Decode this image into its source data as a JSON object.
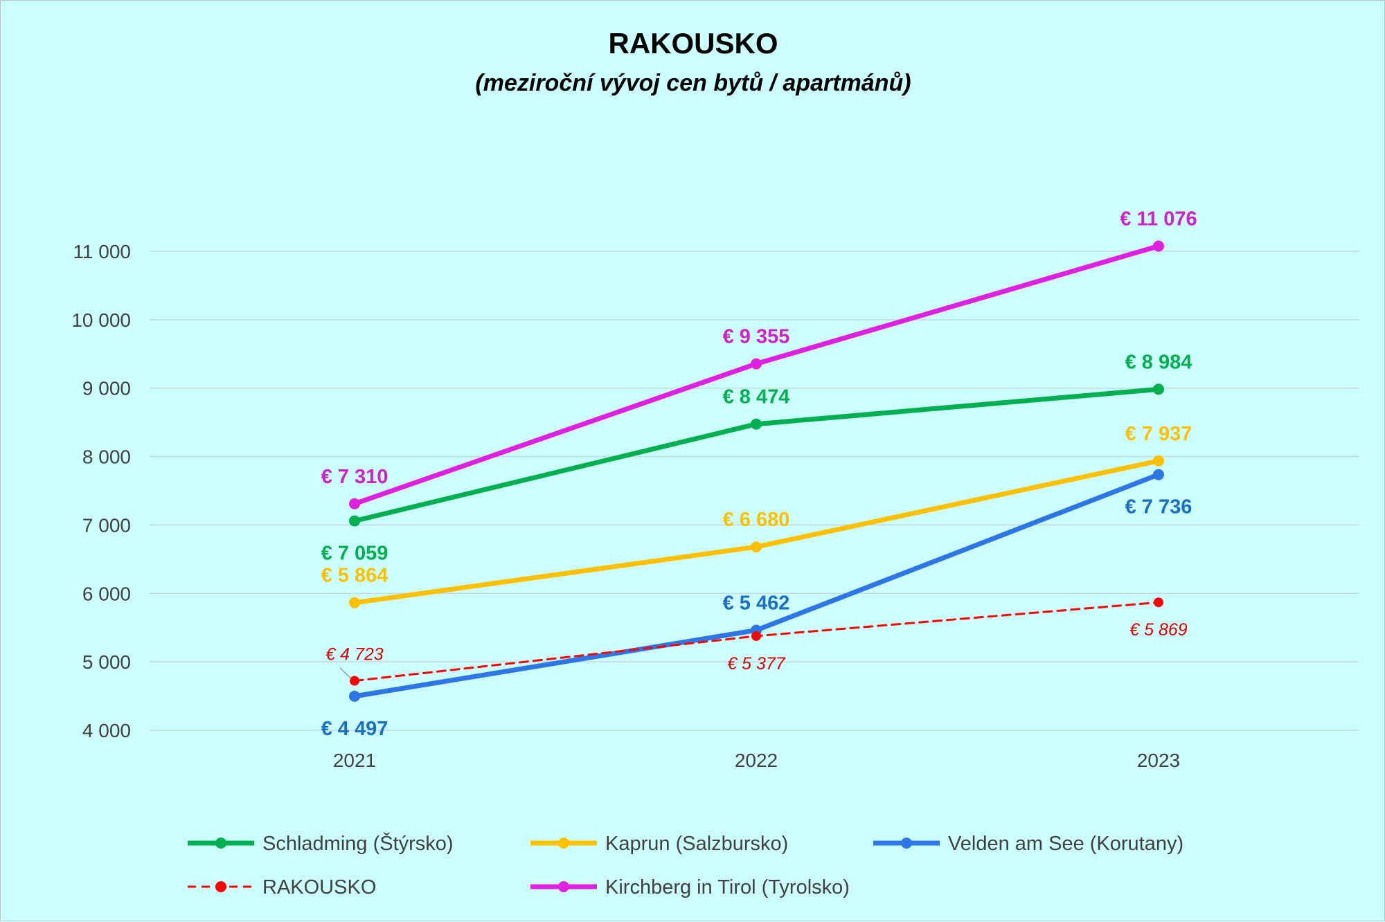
{
  "chart_data": {
    "type": "line",
    "title": "RAKOUSKO",
    "subtitle": "(meziroční vývoj cen bytů / apartmánů)",
    "categories": [
      "2021",
      "2022",
      "2023"
    ],
    "ylim": [
      4000,
      11000
    ],
    "yticks": [
      4000,
      5000,
      6000,
      7000,
      8000,
      9000,
      10000,
      11000
    ],
    "ytick_labels": [
      "4 000",
      "5 000",
      "6 000",
      "7 000",
      "8 000",
      "9 000",
      "10 000",
      "11 000"
    ],
    "grid": true,
    "legend_position": "bottom",
    "series": [
      {
        "name": "Schladming (Štýrsko)",
        "color": "#00b050",
        "style": "solid",
        "values": [
          7059,
          8474,
          8984
        ],
        "labels": [
          "€ 7 059",
          "€ 8 474",
          "€ 8 984"
        ],
        "label_position": [
          "below",
          "above",
          "above"
        ]
      },
      {
        "name": "Kaprun (Salzbursko)",
        "color": "#ffc000",
        "style": "solid",
        "values": [
          5864,
          6680,
          7937
        ],
        "labels": [
          "€ 5 864",
          "€ 6 680",
          "€ 7 937"
        ],
        "label_position": [
          "above",
          "above",
          "above"
        ]
      },
      {
        "name": "Velden am See (Korutany)",
        "color": "#2e75e6",
        "label_color": "#1a6fc4",
        "style": "solid",
        "values": [
          4497,
          5462,
          7736
        ],
        "labels": [
          "€ 4 497",
          "€ 5 462",
          "€ 7 736"
        ],
        "label_position": [
          "below",
          "above",
          "below"
        ]
      },
      {
        "name": "RAKOUSKO",
        "color": "#ff0000",
        "label_color": "#e00000",
        "style": "dashed",
        "values": [
          4723,
          5377,
          5869
        ],
        "labels": [
          "€ 4 723",
          "€ 5 377",
          "€ 5 869"
        ],
        "label_position": [
          "above",
          "below",
          "below"
        ]
      },
      {
        "name": "Kirchberg in Tirol (Tyrolsko)",
        "color": "#e020e0",
        "label_color": "#d020c8",
        "style": "solid",
        "values": [
          7310,
          9355,
          11076
        ],
        "labels": [
          "€ 7 310",
          "€ 9 355",
          "€ 11 076"
        ],
        "label_position": [
          "above",
          "above",
          "above"
        ]
      }
    ],
    "legend_order": [
      0,
      1,
      2,
      3,
      4
    ]
  }
}
